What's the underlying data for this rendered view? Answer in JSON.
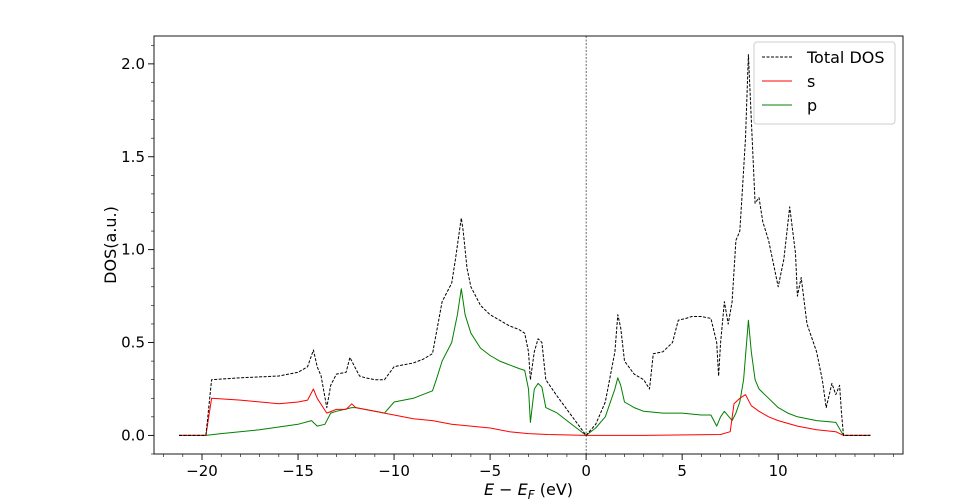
{
  "chart_data": {
    "type": "line",
    "title": "",
    "xlabel_italic_E": "E",
    "xlabel_minus": " − ",
    "xlabel_italic_EF": "E",
    "xlabel_sub_F": "F",
    "xlabel_unit": " (eV)",
    "ylabel": "DOS(a.u.)",
    "xlim": [
      -22.5,
      16.5
    ],
    "ylim": [
      -0.1,
      2.15
    ],
    "xticks": [
      -20,
      -15,
      -10,
      -5,
      0,
      5,
      10
    ],
    "xtick_labels": [
      "−20",
      "−15",
      "−10",
      "−5",
      "0",
      "5",
      "10"
    ],
    "yticks": [
      0.0,
      0.5,
      1.0,
      1.5,
      2.0
    ],
    "ytick_labels": [
      "0.0",
      "0.5",
      "1.0",
      "1.5",
      "2.0"
    ],
    "fermi_level": 0,
    "grid": false,
    "legend_position": "top-right",
    "series": [
      {
        "name": "Total DOS",
        "color": "#000000",
        "style": "dashed",
        "points": [
          [
            -21.2,
            0.0
          ],
          [
            -19.8,
            0.0
          ],
          [
            -19.5,
            0.3
          ],
          [
            -18,
            0.31
          ],
          [
            -16,
            0.32
          ],
          [
            -15,
            0.34
          ],
          [
            -14.5,
            0.37
          ],
          [
            -14.2,
            0.46
          ],
          [
            -14,
            0.37
          ],
          [
            -13.8,
            0.32
          ],
          [
            -13.5,
            0.15
          ],
          [
            -13.3,
            0.27
          ],
          [
            -13,
            0.33
          ],
          [
            -12.5,
            0.34
          ],
          [
            -12.3,
            0.42
          ],
          [
            -12.1,
            0.38
          ],
          [
            -11.8,
            0.32
          ],
          [
            -11.5,
            0.31
          ],
          [
            -11,
            0.3
          ],
          [
            -10.5,
            0.3
          ],
          [
            -10,
            0.37
          ],
          [
            -9.5,
            0.38
          ],
          [
            -9,
            0.39
          ],
          [
            -8.5,
            0.41
          ],
          [
            -8,
            0.44
          ],
          [
            -7.8,
            0.55
          ],
          [
            -7.5,
            0.72
          ],
          [
            -7,
            0.82
          ],
          [
            -6.8,
            0.95
          ],
          [
            -6.6,
            1.1
          ],
          [
            -6.5,
            1.17
          ],
          [
            -6.4,
            1.1
          ],
          [
            -6.2,
            0.9
          ],
          [
            -6,
            0.8
          ],
          [
            -5.5,
            0.7
          ],
          [
            -5,
            0.65
          ],
          [
            -4.5,
            0.62
          ],
          [
            -4,
            0.59
          ],
          [
            -3.5,
            0.57
          ],
          [
            -3.2,
            0.55
          ],
          [
            -3,
            0.45
          ],
          [
            -2.9,
            0.3
          ],
          [
            -2.7,
            0.45
          ],
          [
            -2.5,
            0.52
          ],
          [
            -2.3,
            0.5
          ],
          [
            -2.1,
            0.3
          ],
          [
            -1.5,
            0.21
          ],
          [
            -1,
            0.14
          ],
          [
            -0.5,
            0.07
          ],
          [
            0,
            0.0
          ],
          [
            0.5,
            0.06
          ],
          [
            1,
            0.18
          ],
          [
            1.5,
            0.45
          ],
          [
            1.65,
            0.65
          ],
          [
            1.8,
            0.58
          ],
          [
            2,
            0.4
          ],
          [
            2.5,
            0.33
          ],
          [
            3,
            0.3
          ],
          [
            3.3,
            0.25
          ],
          [
            3.5,
            0.44
          ],
          [
            4,
            0.45
          ],
          [
            4.5,
            0.5
          ],
          [
            4.8,
            0.62
          ],
          [
            5.2,
            0.63
          ],
          [
            5.5,
            0.64
          ],
          [
            6,
            0.64
          ],
          [
            6.5,
            0.63
          ],
          [
            6.8,
            0.5
          ],
          [
            6.9,
            0.32
          ],
          [
            7,
            0.5
          ],
          [
            7.2,
            0.72
          ],
          [
            7.4,
            0.6
          ],
          [
            7.6,
            0.72
          ],
          [
            7.8,
            1.05
          ],
          [
            8,
            1.1
          ],
          [
            8.1,
            1.26
          ],
          [
            8.3,
            1.6
          ],
          [
            8.45,
            2.05
          ],
          [
            8.6,
            1.7
          ],
          [
            8.8,
            1.25
          ],
          [
            9,
            1.28
          ],
          [
            9.2,
            1.15
          ],
          [
            9.5,
            1.05
          ],
          [
            10,
            0.8
          ],
          [
            10.3,
            0.95
          ],
          [
            10.6,
            1.23
          ],
          [
            10.9,
            0.98
          ],
          [
            11,
            0.75
          ],
          [
            11.2,
            0.85
          ],
          [
            11.5,
            0.6
          ],
          [
            12,
            0.45
          ],
          [
            12.3,
            0.3
          ],
          [
            12.5,
            0.15
          ],
          [
            12.8,
            0.28
          ],
          [
            13,
            0.22
          ],
          [
            13.2,
            0.27
          ],
          [
            13.3,
            0.12
          ],
          [
            13.4,
            0.0
          ],
          [
            14.8,
            0.0
          ]
        ]
      },
      {
        "name": "s",
        "color": "#ff0000",
        "style": "solid",
        "points": [
          [
            -21.2,
            0.0
          ],
          [
            -19.8,
            0.0
          ],
          [
            -19.5,
            0.2
          ],
          [
            -18,
            0.19
          ],
          [
            -16,
            0.17
          ],
          [
            -15,
            0.18
          ],
          [
            -14.5,
            0.19
          ],
          [
            -14.2,
            0.25
          ],
          [
            -14,
            0.2
          ],
          [
            -13.5,
            0.12
          ],
          [
            -13,
            0.14
          ],
          [
            -12.5,
            0.14
          ],
          [
            -12.2,
            0.17
          ],
          [
            -12,
            0.15
          ],
          [
            -11,
            0.13
          ],
          [
            -10,
            0.11
          ],
          [
            -9,
            0.09
          ],
          [
            -8,
            0.08
          ],
          [
            -7,
            0.06
          ],
          [
            -6,
            0.05
          ],
          [
            -5,
            0.04
          ],
          [
            -4,
            0.02
          ],
          [
            -3,
            0.01
          ],
          [
            -2,
            0.005
          ],
          [
            0,
            0.0
          ],
          [
            3,
            0.0
          ],
          [
            7,
            0.005
          ],
          [
            7.5,
            0.02
          ],
          [
            7.7,
            0.17
          ],
          [
            8,
            0.2
          ],
          [
            8.3,
            0.22
          ],
          [
            8.6,
            0.16
          ],
          [
            9,
            0.13
          ],
          [
            9.5,
            0.1
          ],
          [
            10,
            0.08
          ],
          [
            11,
            0.05
          ],
          [
            12,
            0.03
          ],
          [
            13,
            0.02
          ],
          [
            13.4,
            0.0
          ],
          [
            14.8,
            0.0
          ]
        ]
      },
      {
        "name": "p",
        "color": "#008000",
        "style": "solid",
        "points": [
          [
            -21.2,
            0.0
          ],
          [
            -19.8,
            0.0
          ],
          [
            -19,
            0.01
          ],
          [
            -17,
            0.03
          ],
          [
            -15,
            0.06
          ],
          [
            -14.3,
            0.08
          ],
          [
            -14,
            0.05
          ],
          [
            -13.6,
            0.06
          ],
          [
            -13.3,
            0.12
          ],
          [
            -13,
            0.13
          ],
          [
            -12.2,
            0.15
          ],
          [
            -12,
            0.15
          ],
          [
            -11,
            0.13
          ],
          [
            -10.5,
            0.12
          ],
          [
            -10,
            0.18
          ],
          [
            -9,
            0.2
          ],
          [
            -8,
            0.24
          ],
          [
            -7.8,
            0.3
          ],
          [
            -7.5,
            0.4
          ],
          [
            -7,
            0.5
          ],
          [
            -6.7,
            0.65
          ],
          [
            -6.5,
            0.79
          ],
          [
            -6.3,
            0.65
          ],
          [
            -6,
            0.55
          ],
          [
            -5.5,
            0.47
          ],
          [
            -5,
            0.43
          ],
          [
            -4.5,
            0.4
          ],
          [
            -4,
            0.38
          ],
          [
            -3.5,
            0.36
          ],
          [
            -3.2,
            0.35
          ],
          [
            -3,
            0.25
          ],
          [
            -2.9,
            0.07
          ],
          [
            -2.7,
            0.25
          ],
          [
            -2.5,
            0.28
          ],
          [
            -2.3,
            0.26
          ],
          [
            -2.1,
            0.15
          ],
          [
            -1.5,
            0.12
          ],
          [
            -1,
            0.08
          ],
          [
            -0.5,
            0.04
          ],
          [
            0,
            0.0
          ],
          [
            0.5,
            0.04
          ],
          [
            1,
            0.1
          ],
          [
            1.5,
            0.25
          ],
          [
            1.65,
            0.31
          ],
          [
            1.8,
            0.27
          ],
          [
            2,
            0.18
          ],
          [
            2.5,
            0.15
          ],
          [
            3,
            0.13
          ],
          [
            4,
            0.12
          ],
          [
            5,
            0.12
          ],
          [
            6,
            0.11
          ],
          [
            6.5,
            0.11
          ],
          [
            6.8,
            0.05
          ],
          [
            7,
            0.1
          ],
          [
            7.2,
            0.13
          ],
          [
            7.6,
            0.08
          ],
          [
            7.8,
            0.12
          ],
          [
            8,
            0.18
          ],
          [
            8.2,
            0.3
          ],
          [
            8.45,
            0.62
          ],
          [
            8.6,
            0.45
          ],
          [
            8.8,
            0.3
          ],
          [
            9,
            0.25
          ],
          [
            9.5,
            0.2
          ],
          [
            10,
            0.15
          ],
          [
            10.5,
            0.12
          ],
          [
            11,
            0.1
          ],
          [
            12,
            0.08
          ],
          [
            13,
            0.07
          ],
          [
            13.4,
            0.0
          ],
          [
            14.8,
            0.0
          ]
        ]
      }
    ]
  }
}
